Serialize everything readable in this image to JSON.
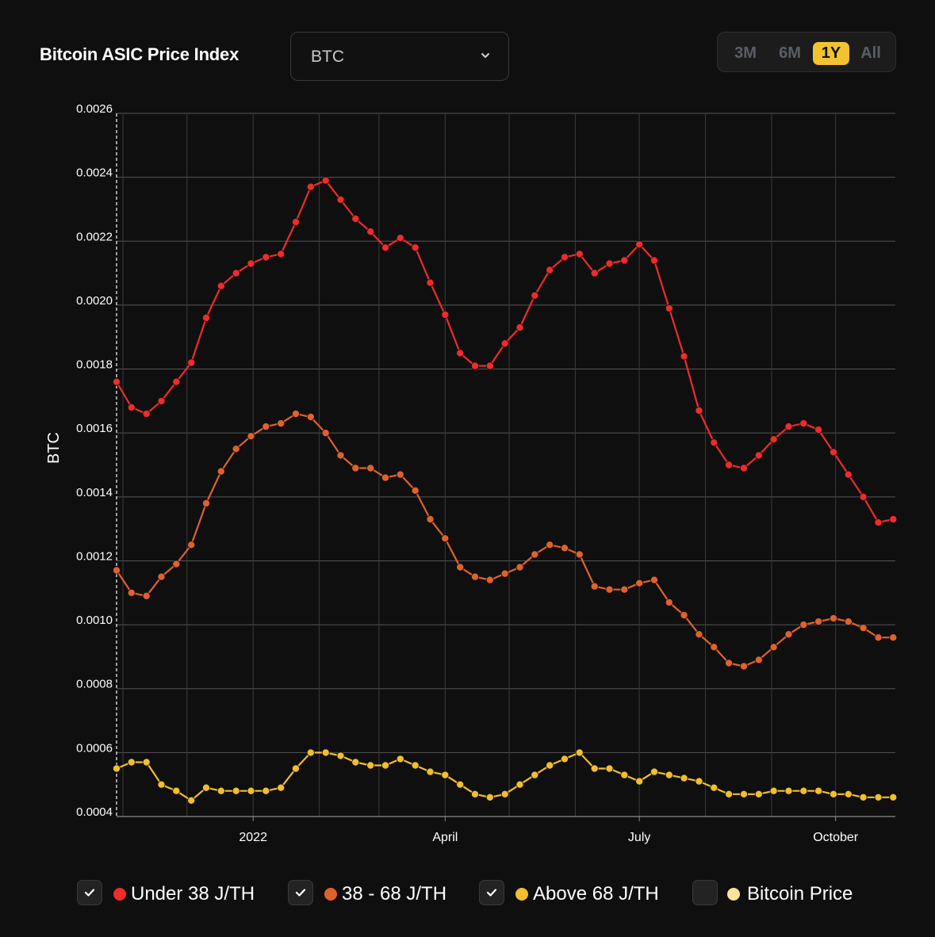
{
  "header": {
    "title": "Bitcoin ASIC Price Index",
    "currency_select": {
      "value": "BTC"
    },
    "ranges": [
      "3M",
      "6M",
      "1Y",
      "All"
    ],
    "active_range": "1Y"
  },
  "legend": [
    {
      "label": "Under 38 J/TH",
      "color": "#ef2b2b",
      "checked": true,
      "icon": "check-icon"
    },
    {
      "label": "38 - 68 J/TH",
      "color": "#e0612e",
      "checked": true,
      "icon": "check-icon"
    },
    {
      "label": "Above 68 J/TH",
      "color": "#f2be2e",
      "checked": true,
      "icon": "check-icon"
    },
    {
      "label": "Bitcoin Price",
      "color": "#fbe39a",
      "checked": false,
      "icon": ""
    }
  ],
  "chart_data": {
    "type": "line",
    "title": "",
    "xlabel": "",
    "ylabel": "BTC",
    "ylim": [
      0.0004,
      0.0026
    ],
    "yticks": [
      "0.0004",
      "0.0006",
      "0.0008",
      "0.0010",
      "0.0012",
      "0.0014",
      "0.0016",
      "0.0018",
      "0.0020",
      "0.0022",
      "0.0024",
      "0.0026"
    ],
    "xlim": [
      "2021-10-29",
      "2022-10-29"
    ],
    "xticks": [
      {
        "label": "2022",
        "date": "2022-01-01"
      },
      {
        "label": "April",
        "date": "2022-04-01"
      },
      {
        "label": "July",
        "date": "2022-07-01"
      },
      {
        "label": "October",
        "date": "2022-10-01"
      }
    ],
    "grid": true,
    "x": [
      "2021-10-29",
      "2021-11-05",
      "2021-11-12",
      "2021-11-19",
      "2021-11-26",
      "2021-12-03",
      "2021-12-10",
      "2021-12-17",
      "2021-12-24",
      "2021-12-31",
      "2022-01-07",
      "2022-01-14",
      "2022-01-21",
      "2022-01-28",
      "2022-02-04",
      "2022-02-11",
      "2022-02-18",
      "2022-02-25",
      "2022-03-04",
      "2022-03-11",
      "2022-03-18",
      "2022-03-25",
      "2022-04-01",
      "2022-04-08",
      "2022-04-15",
      "2022-04-22",
      "2022-04-29",
      "2022-05-06",
      "2022-05-13",
      "2022-05-20",
      "2022-05-27",
      "2022-06-03",
      "2022-06-10",
      "2022-06-17",
      "2022-06-24",
      "2022-07-01",
      "2022-07-08",
      "2022-07-15",
      "2022-07-22",
      "2022-07-29",
      "2022-08-05",
      "2022-08-12",
      "2022-08-19",
      "2022-08-26",
      "2022-09-02",
      "2022-09-09",
      "2022-09-16",
      "2022-09-23",
      "2022-09-30",
      "2022-10-07",
      "2022-10-14",
      "2022-10-21",
      "2022-10-28"
    ],
    "series": [
      {
        "name": "Under 38 J/TH",
        "color": "#ef2b2b",
        "values": [
          0.00176,
          0.00168,
          0.00166,
          0.0017,
          0.00176,
          0.00182,
          0.00196,
          0.00206,
          0.0021,
          0.00213,
          0.00215,
          0.00216,
          0.00226,
          0.00237,
          0.00239,
          0.00233,
          0.00227,
          0.00223,
          0.00218,
          0.00221,
          0.00218,
          0.00207,
          0.00197,
          0.00185,
          0.00181,
          0.00181,
          0.00188,
          0.00193,
          0.00203,
          0.00211,
          0.00215,
          0.00216,
          0.0021,
          0.00213,
          0.00214,
          0.00219,
          0.00214,
          0.00199,
          0.00184,
          0.00167,
          0.00157,
          0.0015,
          0.00149,
          0.00153,
          0.00158,
          0.00162,
          0.00163,
          0.00161,
          0.00154,
          0.00147,
          0.0014,
          0.00132,
          0.00133
        ]
      },
      {
        "name": "38 - 68 J/TH",
        "color": "#e0612e",
        "values": [
          0.00117,
          0.0011,
          0.00109,
          0.00115,
          0.00119,
          0.00125,
          0.00138,
          0.00148,
          0.00155,
          0.00159,
          0.00162,
          0.00163,
          0.00166,
          0.00165,
          0.0016,
          0.00153,
          0.00149,
          0.00149,
          0.00146,
          0.00147,
          0.00142,
          0.00133,
          0.00127,
          0.00118,
          0.00115,
          0.00114,
          0.00116,
          0.00118,
          0.00122,
          0.00125,
          0.00124,
          0.00122,
          0.00112,
          0.00111,
          0.00111,
          0.00113,
          0.00114,
          0.00107,
          0.00103,
          0.00097,
          0.00093,
          0.00088,
          0.00087,
          0.00089,
          0.00093,
          0.00097,
          0.001,
          0.00101,
          0.00102,
          0.00101,
          0.00099,
          0.00096,
          0.00096
        ]
      },
      {
        "name": "Above 68 J/TH",
        "color": "#f2be2e",
        "values": [
          0.00055,
          0.00057,
          0.00057,
          0.0005,
          0.00048,
          0.00045,
          0.00049,
          0.00048,
          0.00048,
          0.00048,
          0.00048,
          0.00049,
          0.00055,
          0.0006,
          0.0006,
          0.00059,
          0.00057,
          0.00056,
          0.00056,
          0.00058,
          0.00056,
          0.00054,
          0.00053,
          0.0005,
          0.00047,
          0.00046,
          0.00047,
          0.0005,
          0.00053,
          0.00056,
          0.00058,
          0.0006,
          0.00055,
          0.00055,
          0.00053,
          0.00051,
          0.00054,
          0.00053,
          0.00052,
          0.00051,
          0.00049,
          0.00047,
          0.00047,
          0.00047,
          0.00048,
          0.00048,
          0.00048,
          0.00048,
          0.00047,
          0.00047,
          0.00046,
          0.00046,
          0.00046
        ]
      }
    ]
  }
}
